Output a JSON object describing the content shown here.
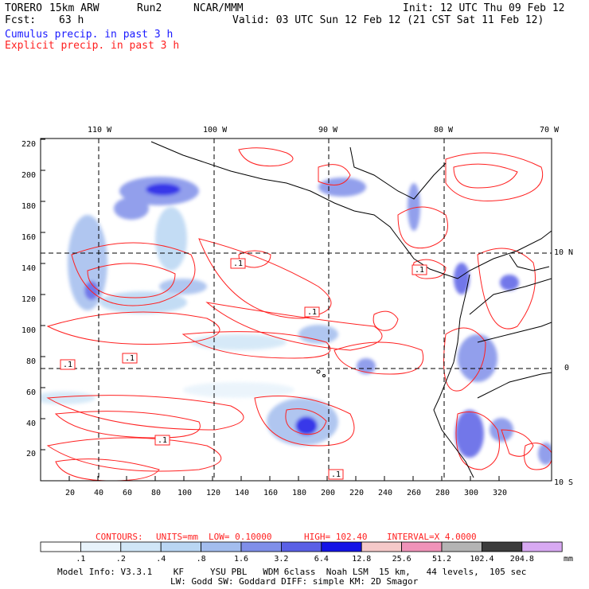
{
  "header": {
    "model": "TORERO",
    "resolution": "15km ARW",
    "run": "Run2",
    "org": "NCAR/MMM",
    "init": "Init: 12 UTC Thu 09 Feb 12",
    "fcst_label": "Fcst:",
    "fcst_hours": "63 h",
    "valid": "Valid: 03 UTC Sun 12 Feb 12 (21 CST Sat 11 Feb 12)",
    "cumulus_label": "Cumulus precip. in past 3 h",
    "explicit_label": "Explicit precip. in past 3 h"
  },
  "map": {
    "lon_top_labels": [
      "110 W",
      "100 W",
      "90 W",
      "80 W",
      "70 W"
    ],
    "lat_right_labels": [
      "10 N",
      "0",
      "10 S"
    ],
    "y_axis_ticks": [
      "220",
      "200",
      "180",
      "160",
      "140",
      "120",
      "100",
      "80",
      "60",
      "40",
      "20"
    ],
    "x_axis_ticks": [
      "20",
      "40",
      "60",
      "80",
      "100",
      "120",
      "140",
      "160",
      "180",
      "200",
      "220",
      "240",
      "260",
      "280",
      "300",
      "320"
    ],
    "contour_box_labels": [
      ".1",
      ".1",
      ".1",
      ".1",
      ".1",
      ".1",
      ".1"
    ]
  },
  "contours": {
    "label": "CONTOURS:",
    "units": "UNITS=mm",
    "low": "LOW= 0.10000",
    "high": "HIGH= 102.40",
    "interval": "INTERVAL=X 4.0000"
  },
  "colorbar": {
    "labels": [
      ".1",
      ".2",
      ".4",
      ".8",
      "1.6",
      "3.2",
      "6.4",
      "12.8",
      "25.6",
      "51.2",
      "102.4",
      "204.8"
    ],
    "unit": "mm",
    "colors": [
      "#ffffff",
      "#e8f3fb",
      "#d0e6f7",
      "#b9d6f3",
      "#a3bdee",
      "#7f8fe9",
      "#5a60e6",
      "#1414e6",
      "#f5c9c9",
      "#f093b9",
      "#b4b4b4",
      "#3c3c3c",
      "#d8a9f2"
    ]
  },
  "footer": {
    "line1": "Model Info: V3.3.1    KF     YSU PBL   WDM 6class  Noah LSM  15 km,   44 levels,  105 sec",
    "line2": "LW: Godd SW: Goddard DIFF: simple KM: 2D Smagor"
  }
}
